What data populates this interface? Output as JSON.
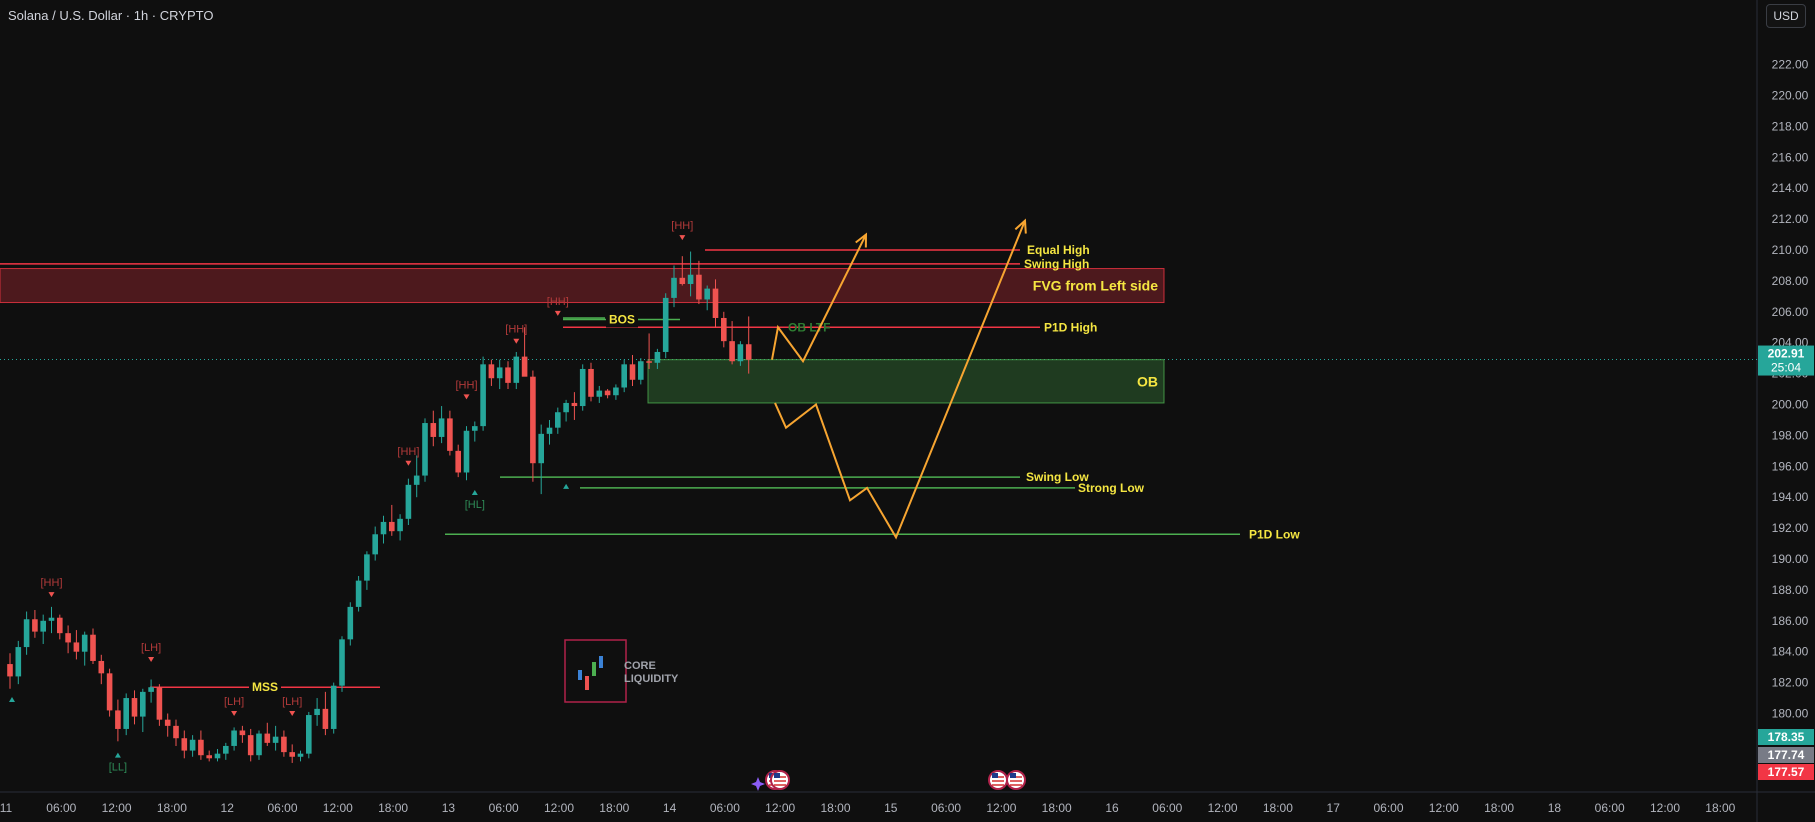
{
  "header": {
    "title": "Solana / U.S. Dollar · 1h · CRYPTO",
    "currency": "USD"
  },
  "colors": {
    "bg": "#0f0f0f",
    "up": "#26a69a",
    "down": "#ef5350",
    "red_line": "#f23645",
    "green_line": "#4caf50",
    "label_yellow": "#f5e642",
    "path_orange": "#f7a531",
    "grid_text": "#b2b5be"
  },
  "chart_data": {
    "type": "candlestick",
    "symbol": "Solana / U.S. Dollar",
    "interval": "1h",
    "ylim": [
      176.5,
      223
    ],
    "y_ticks": [
      "222.00",
      "220.00",
      "218.00",
      "216.00",
      "214.00",
      "212.00",
      "210.00",
      "208.00",
      "206.00",
      "204.00",
      "202.00",
      "200.00",
      "198.00",
      "196.00",
      "194.00",
      "192.00",
      "190.00",
      "188.00",
      "186.00",
      "184.00",
      "182.00",
      "180.00"
    ],
    "x_ticks": [
      "11",
      "06:00",
      "12:00",
      "18:00",
      "12",
      "06:00",
      "12:00",
      "18:00",
      "13",
      "06:00",
      "12:00",
      "18:00",
      "14",
      "06:00",
      "12:00",
      "18:00",
      "15",
      "06:00",
      "12:00",
      "18:00",
      "16",
      "06:00",
      "12:00",
      "18:00",
      "17",
      "06:00",
      "12:00",
      "18:00",
      "18",
      "06:00",
      "12:00",
      "18:00"
    ],
    "price_badges": [
      {
        "value": "202.91",
        "sub": "25:04",
        "color": "#26a69a"
      },
      {
        "value": "178.35",
        "color": "#26a69a"
      },
      {
        "value": "177.74",
        "color": "#787b86"
      },
      {
        "value": "177.57",
        "color": "#f23645"
      }
    ],
    "candles": [
      [
        183.2,
        183.9,
        181.6,
        182.4
      ],
      [
        182.4,
        184.7,
        181.9,
        184.3
      ],
      [
        184.3,
        186.6,
        183.8,
        186.1
      ],
      [
        186.1,
        186.7,
        184.9,
        185.3
      ],
      [
        185.3,
        186.4,
        184.5,
        186.0
      ],
      [
        186.0,
        186.9,
        185.2,
        186.2
      ],
      [
        186.2,
        186.4,
        184.8,
        185.2
      ],
      [
        185.2,
        185.7,
        183.9,
        184.6
      ],
      [
        184.6,
        185.4,
        183.5,
        184.0
      ],
      [
        184.0,
        185.3,
        183.1,
        185.1
      ],
      [
        185.1,
        185.5,
        183.2,
        183.4
      ],
      [
        183.4,
        183.8,
        181.9,
        182.6
      ],
      [
        182.6,
        182.9,
        179.8,
        180.2
      ],
      [
        180.2,
        180.9,
        178.2,
        179.0
      ],
      [
        179.0,
        181.3,
        178.6,
        181.0
      ],
      [
        181.0,
        181.5,
        179.3,
        179.8
      ],
      [
        179.8,
        181.6,
        178.8,
        181.4
      ],
      [
        181.4,
        182.2,
        180.7,
        181.7
      ],
      [
        181.7,
        181.9,
        179.2,
        179.6
      ],
      [
        179.6,
        180.0,
        178.5,
        179.2
      ],
      [
        179.2,
        179.6,
        177.9,
        178.4
      ],
      [
        178.4,
        178.9,
        177.1,
        177.6
      ],
      [
        177.6,
        178.6,
        177.2,
        178.3
      ],
      [
        178.3,
        178.9,
        177.0,
        177.3
      ],
      [
        177.3,
        177.6,
        176.9,
        177.1
      ],
      [
        177.1,
        177.7,
        176.9,
        177.4
      ],
      [
        177.4,
        178.1,
        177.0,
        177.9
      ],
      [
        177.9,
        179.1,
        177.6,
        178.9
      ],
      [
        178.9,
        179.2,
        178.1,
        178.6
      ],
      [
        178.6,
        179.0,
        176.9,
        177.3
      ],
      [
        177.3,
        178.9,
        177.0,
        178.7
      ],
      [
        178.7,
        179.4,
        177.9,
        178.1
      ],
      [
        178.1,
        179.2,
        177.6,
        178.5
      ],
      [
        178.5,
        178.9,
        177.2,
        177.5
      ],
      [
        177.5,
        178.0,
        176.8,
        177.2
      ],
      [
        177.2,
        177.6,
        176.9,
        177.4
      ],
      [
        177.4,
        180.1,
        177.1,
        179.9
      ],
      [
        179.9,
        181.0,
        179.2,
        180.3
      ],
      [
        180.3,
        181.4,
        178.6,
        179.0
      ],
      [
        179.0,
        182.0,
        178.7,
        181.8
      ],
      [
        181.8,
        185.0,
        181.4,
        184.8
      ],
      [
        184.8,
        187.2,
        184.4,
        186.9
      ],
      [
        186.9,
        188.9,
        186.6,
        188.6
      ],
      [
        188.6,
        190.5,
        188.0,
        190.3
      ],
      [
        190.3,
        192.1,
        189.9,
        191.6
      ],
      [
        191.6,
        192.8,
        191.0,
        192.4
      ],
      [
        192.4,
        193.5,
        191.5,
        191.8
      ],
      [
        191.8,
        192.9,
        191.2,
        192.6
      ],
      [
        192.6,
        195.2,
        192.2,
        194.8
      ],
      [
        194.8,
        196.7,
        194.0,
        195.4
      ],
      [
        195.4,
        199.1,
        195.0,
        198.8
      ],
      [
        198.8,
        199.6,
        197.3,
        197.9
      ],
      [
        197.9,
        199.9,
        197.5,
        199.1
      ],
      [
        199.1,
        199.6,
        196.7,
        197.0
      ],
      [
        197.0,
        197.4,
        195.3,
        195.6
      ],
      [
        195.6,
        198.6,
        195.1,
        198.3
      ],
      [
        198.3,
        198.9,
        197.6,
        198.6
      ],
      [
        198.6,
        203.1,
        198.3,
        202.6
      ],
      [
        202.6,
        202.9,
        201.2,
        201.7
      ],
      [
        201.7,
        202.9,
        201.0,
        202.4
      ],
      [
        202.4,
        202.8,
        201.0,
        201.4
      ],
      [
        201.4,
        203.4,
        201.0,
        203.1
      ],
      [
        203.1,
        205.0,
        201.9,
        201.8
      ],
      [
        201.8,
        202.2,
        195.0,
        196.2
      ],
      [
        196.2,
        198.7,
        194.2,
        198.1
      ],
      [
        198.1,
        199.0,
        197.4,
        198.5
      ],
      [
        198.5,
        199.8,
        198.1,
        199.5
      ],
      [
        199.5,
        200.3,
        198.9,
        200.1
      ],
      [
        200.1,
        200.8,
        199.0,
        199.9
      ],
      [
        199.9,
        202.6,
        199.6,
        202.3
      ],
      [
        202.3,
        202.7,
        200.2,
        200.5
      ],
      [
        200.5,
        201.2,
        200.1,
        200.9
      ],
      [
        200.9,
        201.0,
        200.4,
        200.6
      ],
      [
        200.6,
        201.3,
        200.3,
        201.1
      ],
      [
        201.1,
        202.9,
        200.8,
        202.6
      ],
      [
        202.6,
        203.2,
        201.2,
        201.6
      ],
      [
        201.6,
        203.0,
        201.3,
        202.8
      ],
      [
        202.8,
        204.6,
        202.3,
        202.7
      ],
      [
        202.7,
        203.6,
        202.3,
        203.4
      ],
      [
        203.4,
        207.2,
        203.0,
        206.9
      ],
      [
        206.9,
        209.0,
        206.3,
        208.2
      ],
      [
        208.2,
        209.6,
        207.7,
        207.8
      ],
      [
        207.8,
        209.9,
        207.0,
        208.4
      ],
      [
        208.4,
        209.3,
        206.5,
        206.8
      ],
      [
        206.8,
        207.7,
        206.1,
        207.5
      ],
      [
        207.5,
        208.1,
        205.0,
        205.6
      ],
      [
        205.6,
        206.0,
        203.7,
        204.1
      ],
      [
        204.1,
        205.4,
        202.6,
        202.8
      ],
      [
        202.8,
        204.1,
        202.5,
        203.9
      ],
      [
        203.9,
        205.7,
        202.0,
        202.9
      ]
    ],
    "structure_labels": [
      {
        "text": "[HH]",
        "idx": 5,
        "price": 187.6,
        "kind": "high"
      },
      {
        "text": "[LH]",
        "idx": 17,
        "price": 183.4,
        "kind": "high"
      },
      {
        "text": "[LL]",
        "idx": 13,
        "price": 177.4,
        "kind": "low"
      },
      {
        "text": "[LH]",
        "idx": 27,
        "price": 179.9,
        "kind": "high"
      },
      {
        "text": "[LH]",
        "idx": 34,
        "price": 179.9,
        "kind": "high"
      },
      {
        "text": "[HH]",
        "idx": 48,
        "price": 196.1,
        "kind": "high"
      },
      {
        "text": "[HH]",
        "idx": 55,
        "price": 200.4,
        "kind": "high"
      },
      {
        "text": "[HL]",
        "idx": 56,
        "price": 194.4,
        "kind": "low"
      },
      {
        "text": "[HH]",
        "idx": 61,
        "price": 204.0,
        "kind": "high"
      },
      {
        "text": "[HH]",
        "idx": 66,
        "price": 205.8,
        "kind": "high"
      },
      {
        "text": "[HH]",
        "idx": 81,
        "price": 210.7,
        "kind": "high"
      }
    ],
    "zones": [
      {
        "name": "FVG from Left side",
        "from": 206.6,
        "to": 208.8,
        "color": "#f23645"
      },
      {
        "name": "OB",
        "from": 200.1,
        "to": 202.9,
        "color": "#4caf50"
      }
    ],
    "levels": [
      {
        "label": "Equal High",
        "price": 210.0,
        "color": "#f23645"
      },
      {
        "label": "Swing High",
        "price": 209.1,
        "color": "#f23645"
      },
      {
        "label": "P1D High",
        "price": 205.0,
        "color": "#f23645"
      },
      {
        "label": "Swing Low",
        "price": 195.3,
        "color": "#4caf50"
      },
      {
        "label": "Strong Low",
        "price": 194.6,
        "color": "#4caf50"
      },
      {
        "label": "P1D Low",
        "price": 191.6,
        "color": "#4caf50"
      },
      {
        "label": "BOS",
        "price": 205.5,
        "color": "#4caf50"
      },
      {
        "label": "MSS",
        "price": 181.7,
        "color": "#f23645"
      }
    ],
    "annotations": {
      "ob_ltf": "OB LTF"
    },
    "projection_paths": [
      [
        [
          202.9,
          0
        ],
        [
          205.0,
          1
        ],
        [
          202.8,
          2
        ],
        [
          211.0,
          3
        ]
      ],
      [
        [
          200.1,
          4
        ],
        [
          198.5,
          5
        ],
        [
          200.0,
          6
        ],
        [
          193.8,
          7
        ],
        [
          194.6,
          8
        ],
        [
          191.4,
          9
        ],
        [
          211.9,
          10
        ]
      ]
    ]
  },
  "watermark": {
    "line1": "CORE",
    "line2": "LIQUIDITY"
  }
}
